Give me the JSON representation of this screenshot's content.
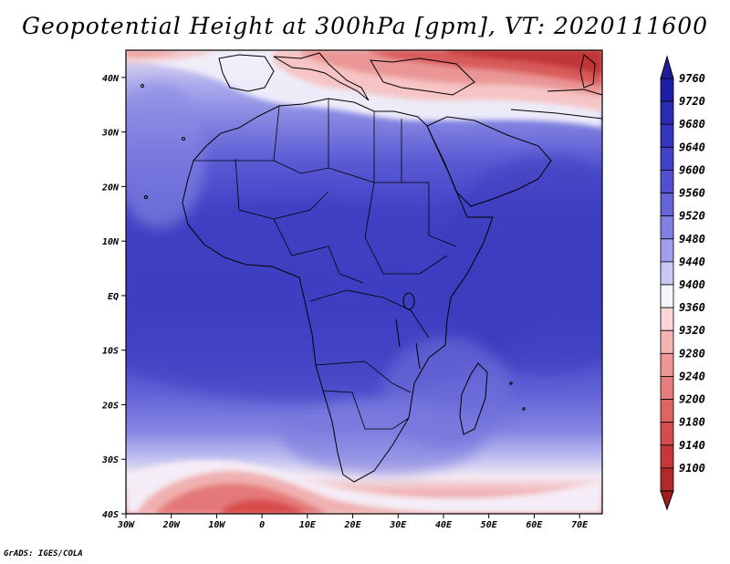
{
  "title": "Geopotential Height at 300hPa [gpm], VT: 2020111600",
  "credit": "GrADS: IGES/COLA",
  "map": {
    "region": "Africa and surroundings",
    "lon_range": [
      -30,
      75
    ],
    "lat_range": [
      -40,
      45
    ],
    "lon_ticks": [
      {
        "v": -30,
        "label": "30W"
      },
      {
        "v": -20,
        "label": "20W"
      },
      {
        "v": -10,
        "label": "10W"
      },
      {
        "v": 0,
        "label": "0"
      },
      {
        "v": 10,
        "label": "10E"
      },
      {
        "v": 20,
        "label": "20E"
      },
      {
        "v": 30,
        "label": "30E"
      },
      {
        "v": 40,
        "label": "40E"
      },
      {
        "v": 50,
        "label": "50E"
      },
      {
        "v": 60,
        "label": "60E"
      },
      {
        "v": 70,
        "label": "70E"
      }
    ],
    "lat_ticks": [
      {
        "v": 40,
        "label": "40N"
      },
      {
        "v": 30,
        "label": "30N"
      },
      {
        "v": 20,
        "label": "20N"
      },
      {
        "v": 10,
        "label": "10N"
      },
      {
        "v": 0,
        "label": "EQ"
      },
      {
        "v": -10,
        "label": "10S"
      },
      {
        "v": -20,
        "label": "20S"
      },
      {
        "v": -30,
        "label": "30S"
      },
      {
        "v": -40,
        "label": "40S"
      }
    ]
  },
  "colorbar": {
    "levels": [
      {
        "label": "9760",
        "color": "#1e1eaa"
      },
      {
        "label": "9720",
        "color": "#2a2ab4"
      },
      {
        "label": "9680",
        "color": "#3434bf"
      },
      {
        "label": "9640",
        "color": "#4040c8"
      },
      {
        "label": "9600",
        "color": "#5050d0"
      },
      {
        "label": "9560",
        "color": "#6464d8"
      },
      {
        "label": "9520",
        "color": "#8080e2"
      },
      {
        "label": "9480",
        "color": "#a0a0ea"
      },
      {
        "label": "9440",
        "color": "#c8c8f4"
      },
      {
        "label": "9400",
        "color": "#f4f4fc"
      },
      {
        "label": "9360",
        "color": "#fbd6d6"
      },
      {
        "label": "9320",
        "color": "#f5b4b4"
      },
      {
        "label": "9280",
        "color": "#ee9696"
      },
      {
        "label": "9240",
        "color": "#e67c7c"
      },
      {
        "label": "9200",
        "color": "#de6464"
      },
      {
        "label": "9180",
        "color": "#d44c4c"
      },
      {
        "label": "9140",
        "color": "#c63838"
      },
      {
        "label": "9100",
        "color": "#b42828"
      }
    ],
    "top_arrow_color": "#1e1e9c",
    "bottom_arrow_color": "#a01e1e"
  }
}
